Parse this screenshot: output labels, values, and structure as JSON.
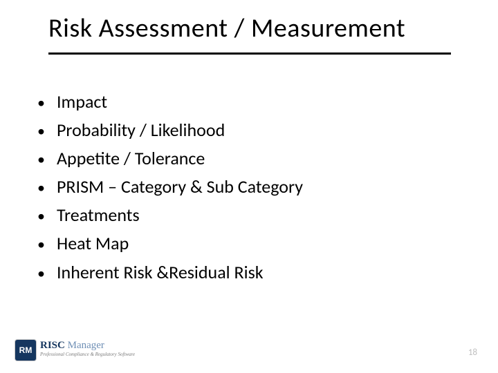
{
  "title": "Risk Assessment / Measurement",
  "bullets": [
    "Impact",
    "Probability / Likelihood",
    "Appetite / Tolerance",
    "PRISM – Category & Sub Category",
    "Treatments",
    "Heat Map",
    "Inherent Risk &Residual Risk"
  ],
  "logo": {
    "badge": "RM",
    "text_bold": "RISC",
    "text_light": " Manager",
    "tagline": "Professional Compliance & Regulatory Software"
  },
  "page_number": "18",
  "colors": {
    "title_color": "#000000",
    "underline_color": "#000000",
    "bullet_color": "#000000",
    "text_color": "#000000",
    "logo_badge_bg": "#15365f",
    "logo_bold_color": "#15365f",
    "logo_light_color": "#6f8fb5",
    "tagline_color": "#7a7a7a",
    "page_num_color": "#bfbfbf",
    "background": "#ffffff"
  },
  "typography": {
    "title_fontsize": 38,
    "bullet_fontsize": 26,
    "logo_main_fontsize": 15,
    "tagline_fontsize": 7,
    "page_num_fontsize": 13
  }
}
